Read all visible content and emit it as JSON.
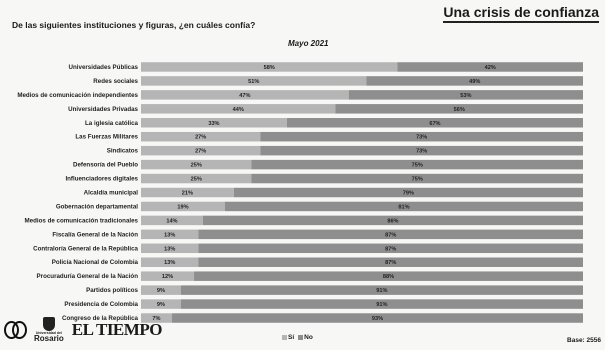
{
  "header": {
    "title": "Una crisis de confianza",
    "question": "De las siguientes instituciones y figuras, ¿en cuáles confía?"
  },
  "chart_data": {
    "type": "bar",
    "orientation": "horizontal",
    "stacked": true,
    "title": "Mayo 2021",
    "categories": [
      "Universidades Públicas",
      "Redes sociales",
      "Medios de comunicación independientes",
      "Universidades Privadas",
      "La iglesia católica",
      "Las Fuerzas Militares",
      "Sindicatos",
      "Defensoría del Pueblo",
      "Influenciadores digitales",
      "Alcaldía municipal",
      "Gobernación departamental",
      "Medios de comunicación tradicionales",
      "Fiscalía General de la Nación",
      "Contraloría General de la República",
      "Policía Nacional de Colombia",
      "Procuraduría General de la Nación",
      "Partidos políticos",
      "Presidencia de Colombia",
      "Congreso de la República"
    ],
    "series": [
      {
        "name": "Sí",
        "color": "#b5b5b5",
        "values": [
          58,
          51,
          47,
          44,
          33,
          27,
          27,
          25,
          25,
          21,
          19,
          14,
          13,
          13,
          13,
          12,
          9,
          9,
          7
        ]
      },
      {
        "name": "No",
        "color": "#8e8e8e",
        "values": [
          42,
          49,
          53,
          56,
          67,
          73,
          73,
          75,
          75,
          79,
          81,
          86,
          87,
          87,
          87,
          88,
          91,
          91,
          93
        ]
      }
    ],
    "legend_position": "bottom",
    "value_suffix": "%"
  },
  "legend": {
    "si_label": "Sí",
    "no_label": "No"
  },
  "footer": {
    "base": "Base: 2556",
    "logo_text_small": "Universidad del",
    "logo_text_rosario": "Rosario",
    "logo_eltiempo": "EL TIEMPO"
  }
}
